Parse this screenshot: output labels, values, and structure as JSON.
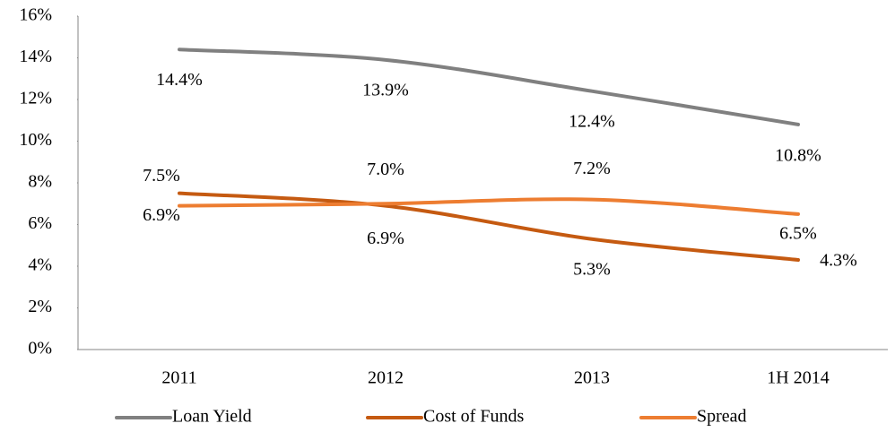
{
  "chart_data": {
    "type": "line",
    "categories": [
      "2011",
      "2012",
      "2013",
      "1H 2014"
    ],
    "series": [
      {
        "name": "Loan Yield",
        "color": "#808080",
        "values": [
          14.4,
          13.9,
          12.4,
          10.8
        ],
        "value_labels": [
          "14.4%",
          "13.9%",
          "12.4%",
          "10.8%"
        ]
      },
      {
        "name": "Cost of Funds",
        "color": "#c55a11",
        "values": [
          7.5,
          6.9,
          5.3,
          4.3
        ],
        "value_labels": [
          "7.5%",
          "6.9%",
          "5.3%",
          "4.3%"
        ]
      },
      {
        "name": "Spread",
        "color": "#ed7d31",
        "values": [
          6.9,
          7.0,
          7.2,
          6.5
        ],
        "value_labels": [
          "6.9%",
          "7.0%",
          "7.2%",
          "6.5%"
        ]
      }
    ],
    "ylim": [
      0,
      16
    ],
    "yticks": [
      {
        "value": 0,
        "label": "0%"
      },
      {
        "value": 2,
        "label": "2%"
      },
      {
        "value": 4,
        "label": "4%"
      },
      {
        "value": 6,
        "label": "6%"
      },
      {
        "value": 8,
        "label": "8%"
      },
      {
        "value": 10,
        "label": "10%"
      },
      {
        "value": 12,
        "label": "12%"
      },
      {
        "value": 14,
        "label": "14%"
      },
      {
        "value": 16,
        "label": "16%"
      }
    ],
    "grid": false,
    "legend": "bottom"
  }
}
